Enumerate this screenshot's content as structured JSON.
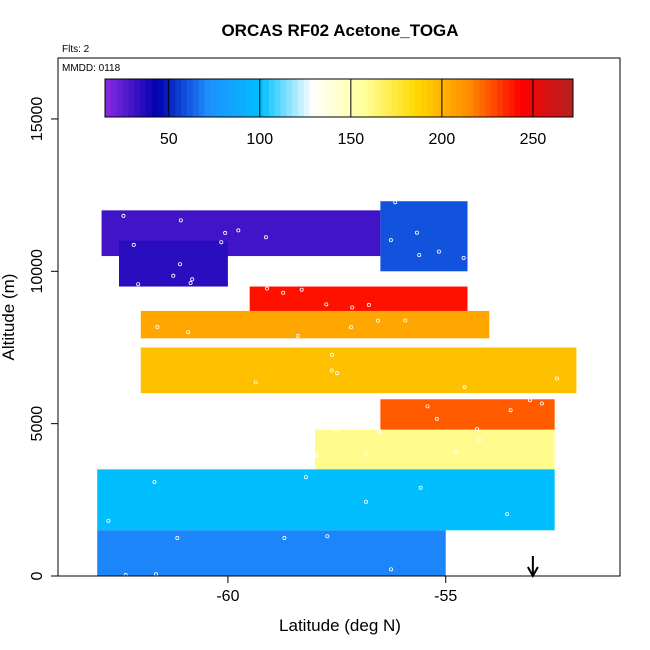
{
  "chart_data": {
    "type": "heatmap",
    "title": "ORCAS RF02 Acetone_TOGA",
    "annotations": {
      "flights": "Flts: 2",
      "date": "MMDD: 0118"
    },
    "xlabel": "Latitude (deg N)",
    "ylabel": "Altitude (m)",
    "xlim": [
      -63.9,
      -51.0
    ],
    "ylim": [
      0,
      17000
    ],
    "x_ticks": [
      -60,
      -55
    ],
    "x_tick_labels": [
      "-60",
      "-55"
    ],
    "y_ticks": [
      0,
      5000,
      10000,
      15000
    ],
    "y_tick_labels": [
      "0",
      "5000",
      "10000",
      "15000"
    ],
    "grid": false,
    "colorbar": {
      "location": "top inside plot",
      "range": [
        15,
        272
      ],
      "ticks": [
        50,
        100,
        150,
        200,
        250
      ],
      "tick_labels": [
        "50",
        "100",
        "150",
        "200",
        "250"
      ],
      "colors": [
        "#8a2be2",
        "#0000b0",
        "#1e90ff",
        "#00bfff",
        "#ffffff",
        "#ffff99",
        "#ffd700",
        "#ff8c00",
        "#ff0000",
        "#b22222"
      ]
    },
    "marker": {
      "type": "arrow-down",
      "x": -53.0
    },
    "layers": [
      {
        "lat": [
          -62.9,
          -56.5
        ],
        "alt": [
          10500,
          12000
        ],
        "value": 30
      },
      {
        "lat": [
          -62.5,
          -60.0
        ],
        "alt": [
          9500,
          11000
        ],
        "value": 35
      },
      {
        "lat": [
          -56.5,
          -54.5
        ],
        "alt": [
          10000,
          12300
        ],
        "value": 60
      },
      {
        "lat": [
          -59.5,
          -54.5
        ],
        "alt": [
          8600,
          9500
        ],
        "value": 240
      },
      {
        "lat": [
          -62.0,
          -54.0
        ],
        "alt": [
          7800,
          8700
        ],
        "value": 205
      },
      {
        "lat": [
          -62.0,
          -52.0
        ],
        "alt": [
          6000,
          7500
        ],
        "value": 195
      },
      {
        "lat": [
          -56.5,
          -52.5
        ],
        "alt": [
          4800,
          5800
        ],
        "value": 225
      },
      {
        "lat": [
          -58.0,
          -52.5
        ],
        "alt": [
          3500,
          4800
        ],
        "value": 160
      },
      {
        "lat": [
          -63.0,
          -52.5
        ],
        "alt": [
          1500,
          3500
        ],
        "value": 100
      },
      {
        "lat": [
          -63.0,
          -55.0
        ],
        "alt": [
          0,
          1500
        ],
        "value": 70
      }
    ]
  }
}
